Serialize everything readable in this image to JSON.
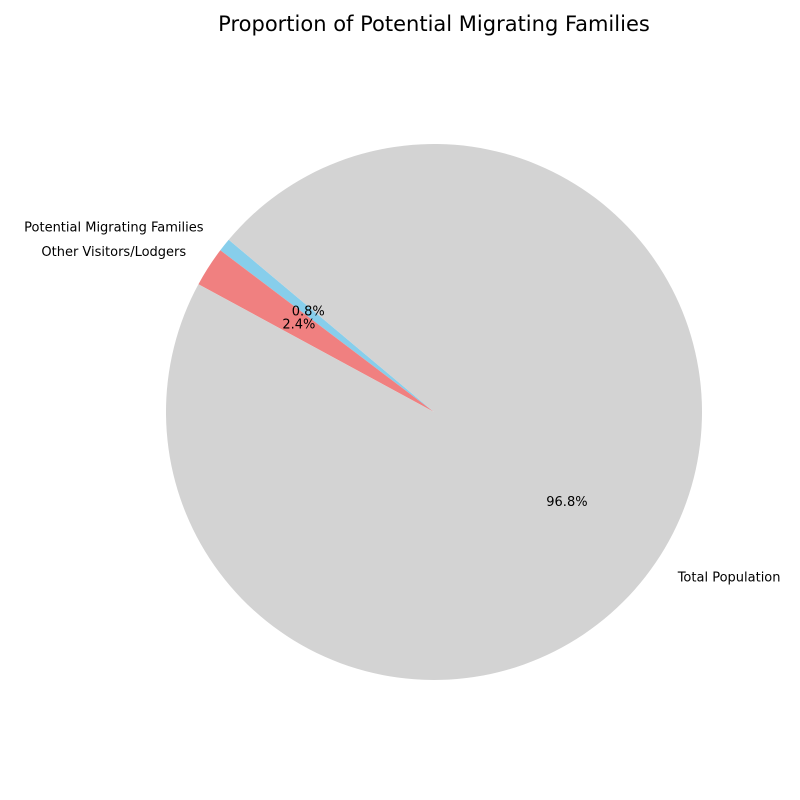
{
  "chart_data": {
    "type": "pie",
    "title": "Proportion of Potential Migrating Families",
    "slices": [
      {
        "label": "Potential Migrating Families",
        "value": 0.8,
        "pct_label": "0.8%",
        "color": "#87ceeb"
      },
      {
        "label": "Other Visitors/Lodgers",
        "value": 2.4,
        "pct_label": "2.4%",
        "color": "#f08080"
      },
      {
        "label": "Total Population",
        "value": 96.8,
        "pct_label": "96.8%",
        "color": "#d3d3d3"
      }
    ],
    "start_angle_deg": 140,
    "direction": "counterclockwise"
  }
}
